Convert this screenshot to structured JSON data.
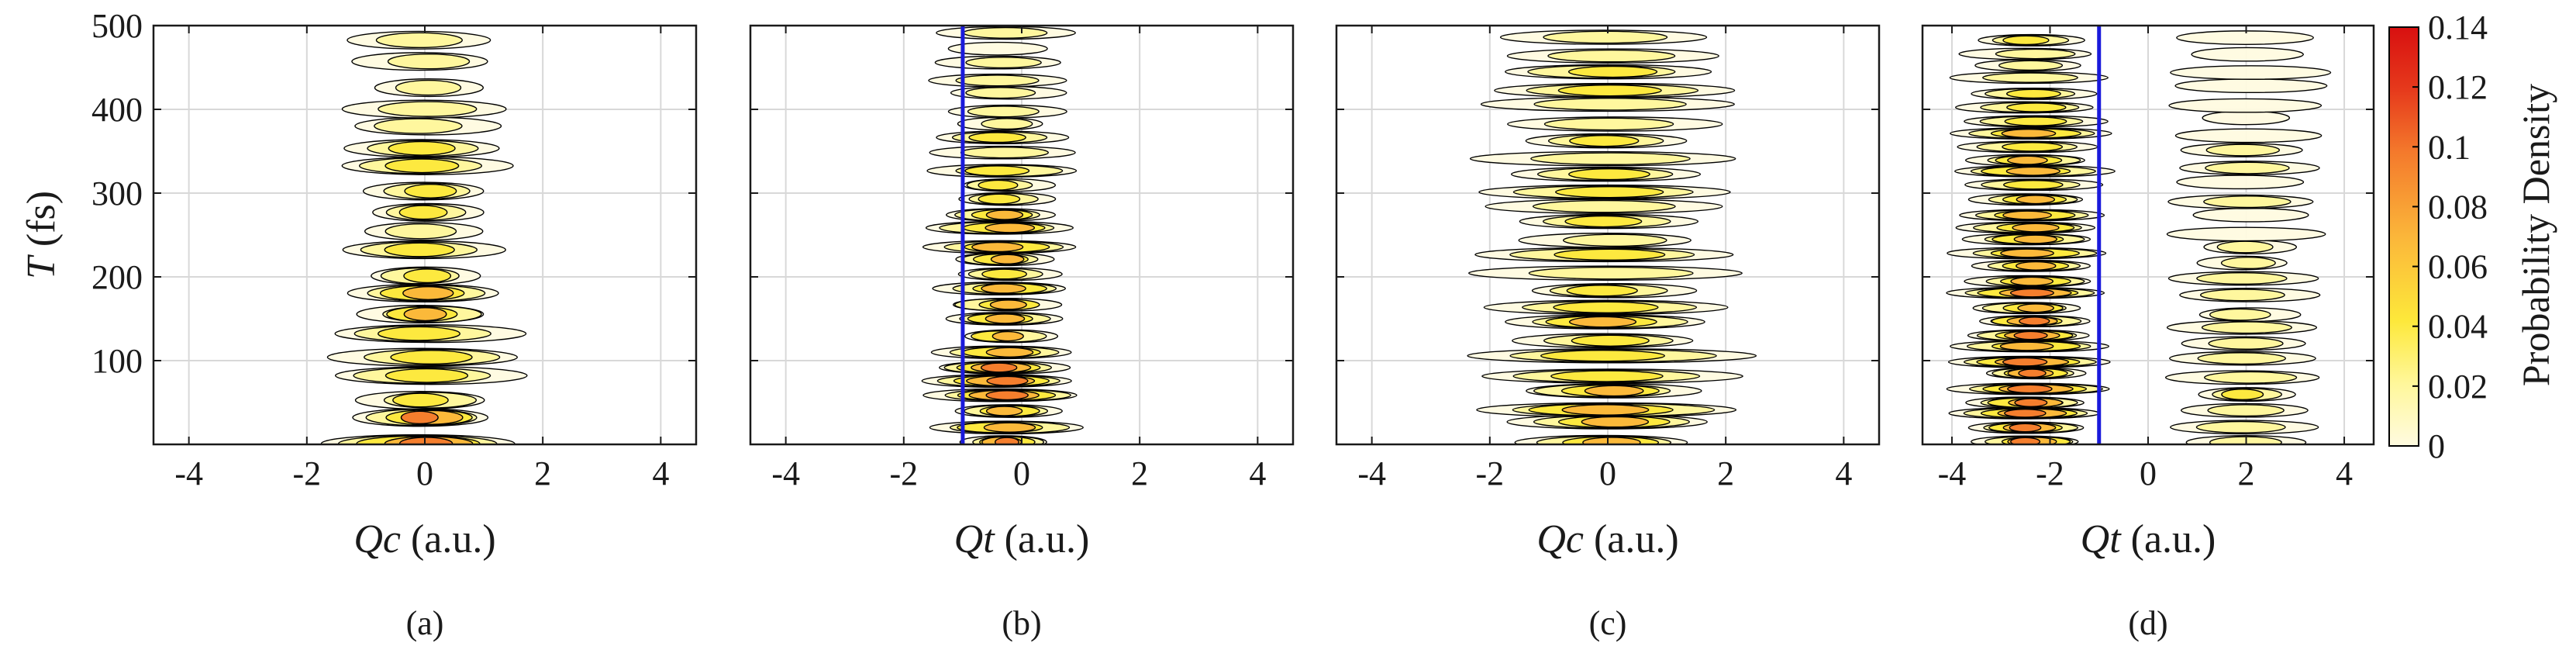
{
  "figure": {
    "description_panels": [
      "a",
      "b",
      "c",
      "d"
    ],
    "colorbar": {
      "label": "Probability Density",
      "ticks": [
        "0.14",
        "0.12",
        "0.1",
        "0.08",
        "0.06",
        "0.04",
        "0.02",
        "0"
      ],
      "tick_values": [
        0.14,
        0.12,
        0.1,
        0.08,
        0.06,
        0.04,
        0.02,
        0
      ],
      "range": [
        0,
        0.14
      ],
      "colors": [
        "#fffbe0",
        "#fff79a",
        "#fde83a",
        "#fbb63a",
        "#f47a2c",
        "#e63a1c",
        "#d81010"
      ]
    },
    "line_color": "#1a1adb",
    "contour_color": "#000000"
  },
  "chart_data": [
    {
      "type": "contour",
      "panel": "(a)",
      "xlabel_var": "Qc",
      "xlabel_unit": " (a.u.)",
      "ylabel_var": "T",
      "ylabel_unit": " (fs)",
      "xlim": [
        -4.6,
        4.6
      ],
      "ylim": [
        0,
        500
      ],
      "xticks": [
        "-4",
        "-2",
        "0",
        "2",
        "4"
      ],
      "xtick_values": [
        -4,
        -2,
        0,
        2,
        4
      ],
      "yticks": [
        "500",
        "400",
        "300",
        "200",
        "100"
      ],
      "ytick_values": [
        500,
        400,
        300,
        200,
        100
      ],
      "grid": true,
      "center": 0,
      "half_width": 1.6,
      "peak_density": 0.07,
      "band_period_fs": 25,
      "vertical_line": null
    },
    {
      "type": "contour",
      "panel": "(b)",
      "xlabel_var": "Qt",
      "xlabel_unit": " (a.u.)",
      "ylabel_var": "T",
      "ylabel_unit": " (fs)",
      "xlim": [
        -4.6,
        4.6
      ],
      "ylim": [
        0,
        500
      ],
      "xticks": [
        "-4",
        "-2",
        "0",
        "2",
        "4"
      ],
      "xtick_values": [
        -4,
        -2,
        0,
        2,
        4
      ],
      "yticks": [
        "500",
        "400",
        "300",
        "200",
        "100"
      ],
      "ytick_values": [
        500,
        400,
        300,
        200,
        100
      ],
      "grid": true,
      "center": -0.3,
      "half_width": 1.3,
      "peak_density": 0.08,
      "band_period_fs": 18,
      "vertical_line": -1
    },
    {
      "type": "contour",
      "panel": "(c)",
      "xlabel_var": "Qc",
      "xlabel_unit": " (a.u.)",
      "ylabel_var": "T",
      "ylabel_unit": " (fs)",
      "xlim": [
        -4.6,
        4.6
      ],
      "ylim": [
        0,
        500
      ],
      "xticks": [
        "-4",
        "-2",
        "0",
        "2",
        "4"
      ],
      "xtick_values": [
        -4,
        -2,
        0,
        2,
        4
      ],
      "yticks": [
        "500",
        "400",
        "300",
        "200",
        "100"
      ],
      "ytick_values": [
        500,
        400,
        300,
        200,
        100
      ],
      "grid": true,
      "center": 0,
      "half_width": 2.4,
      "peak_density": 0.06,
      "band_period_fs": 20,
      "vertical_line": null
    },
    {
      "type": "contour",
      "panel": "(d)",
      "xlabel_var": "Qt",
      "xlabel_unit": " (a.u.)",
      "ylabel_var": "T",
      "ylabel_unit": " (fs)",
      "xlim": [
        -4.6,
        4.6
      ],
      "ylim": [
        0,
        500
      ],
      "xticks": [
        "-4",
        "-2",
        "0",
        "2",
        "4"
      ],
      "xtick_values": [
        -4,
        -2,
        0,
        2,
        4
      ],
      "yticks": [
        "500",
        "400",
        "300",
        "200",
        "100"
      ],
      "ytick_values": [
        500,
        400,
        300,
        200,
        100
      ],
      "grid": true,
      "center": -2.4,
      "half_width": 1.6,
      "peak_density": 0.1,
      "band_period_fs": 16,
      "secondary_center": 2.0,
      "secondary_half_width": 1.6,
      "vertical_line": -1
    }
  ]
}
